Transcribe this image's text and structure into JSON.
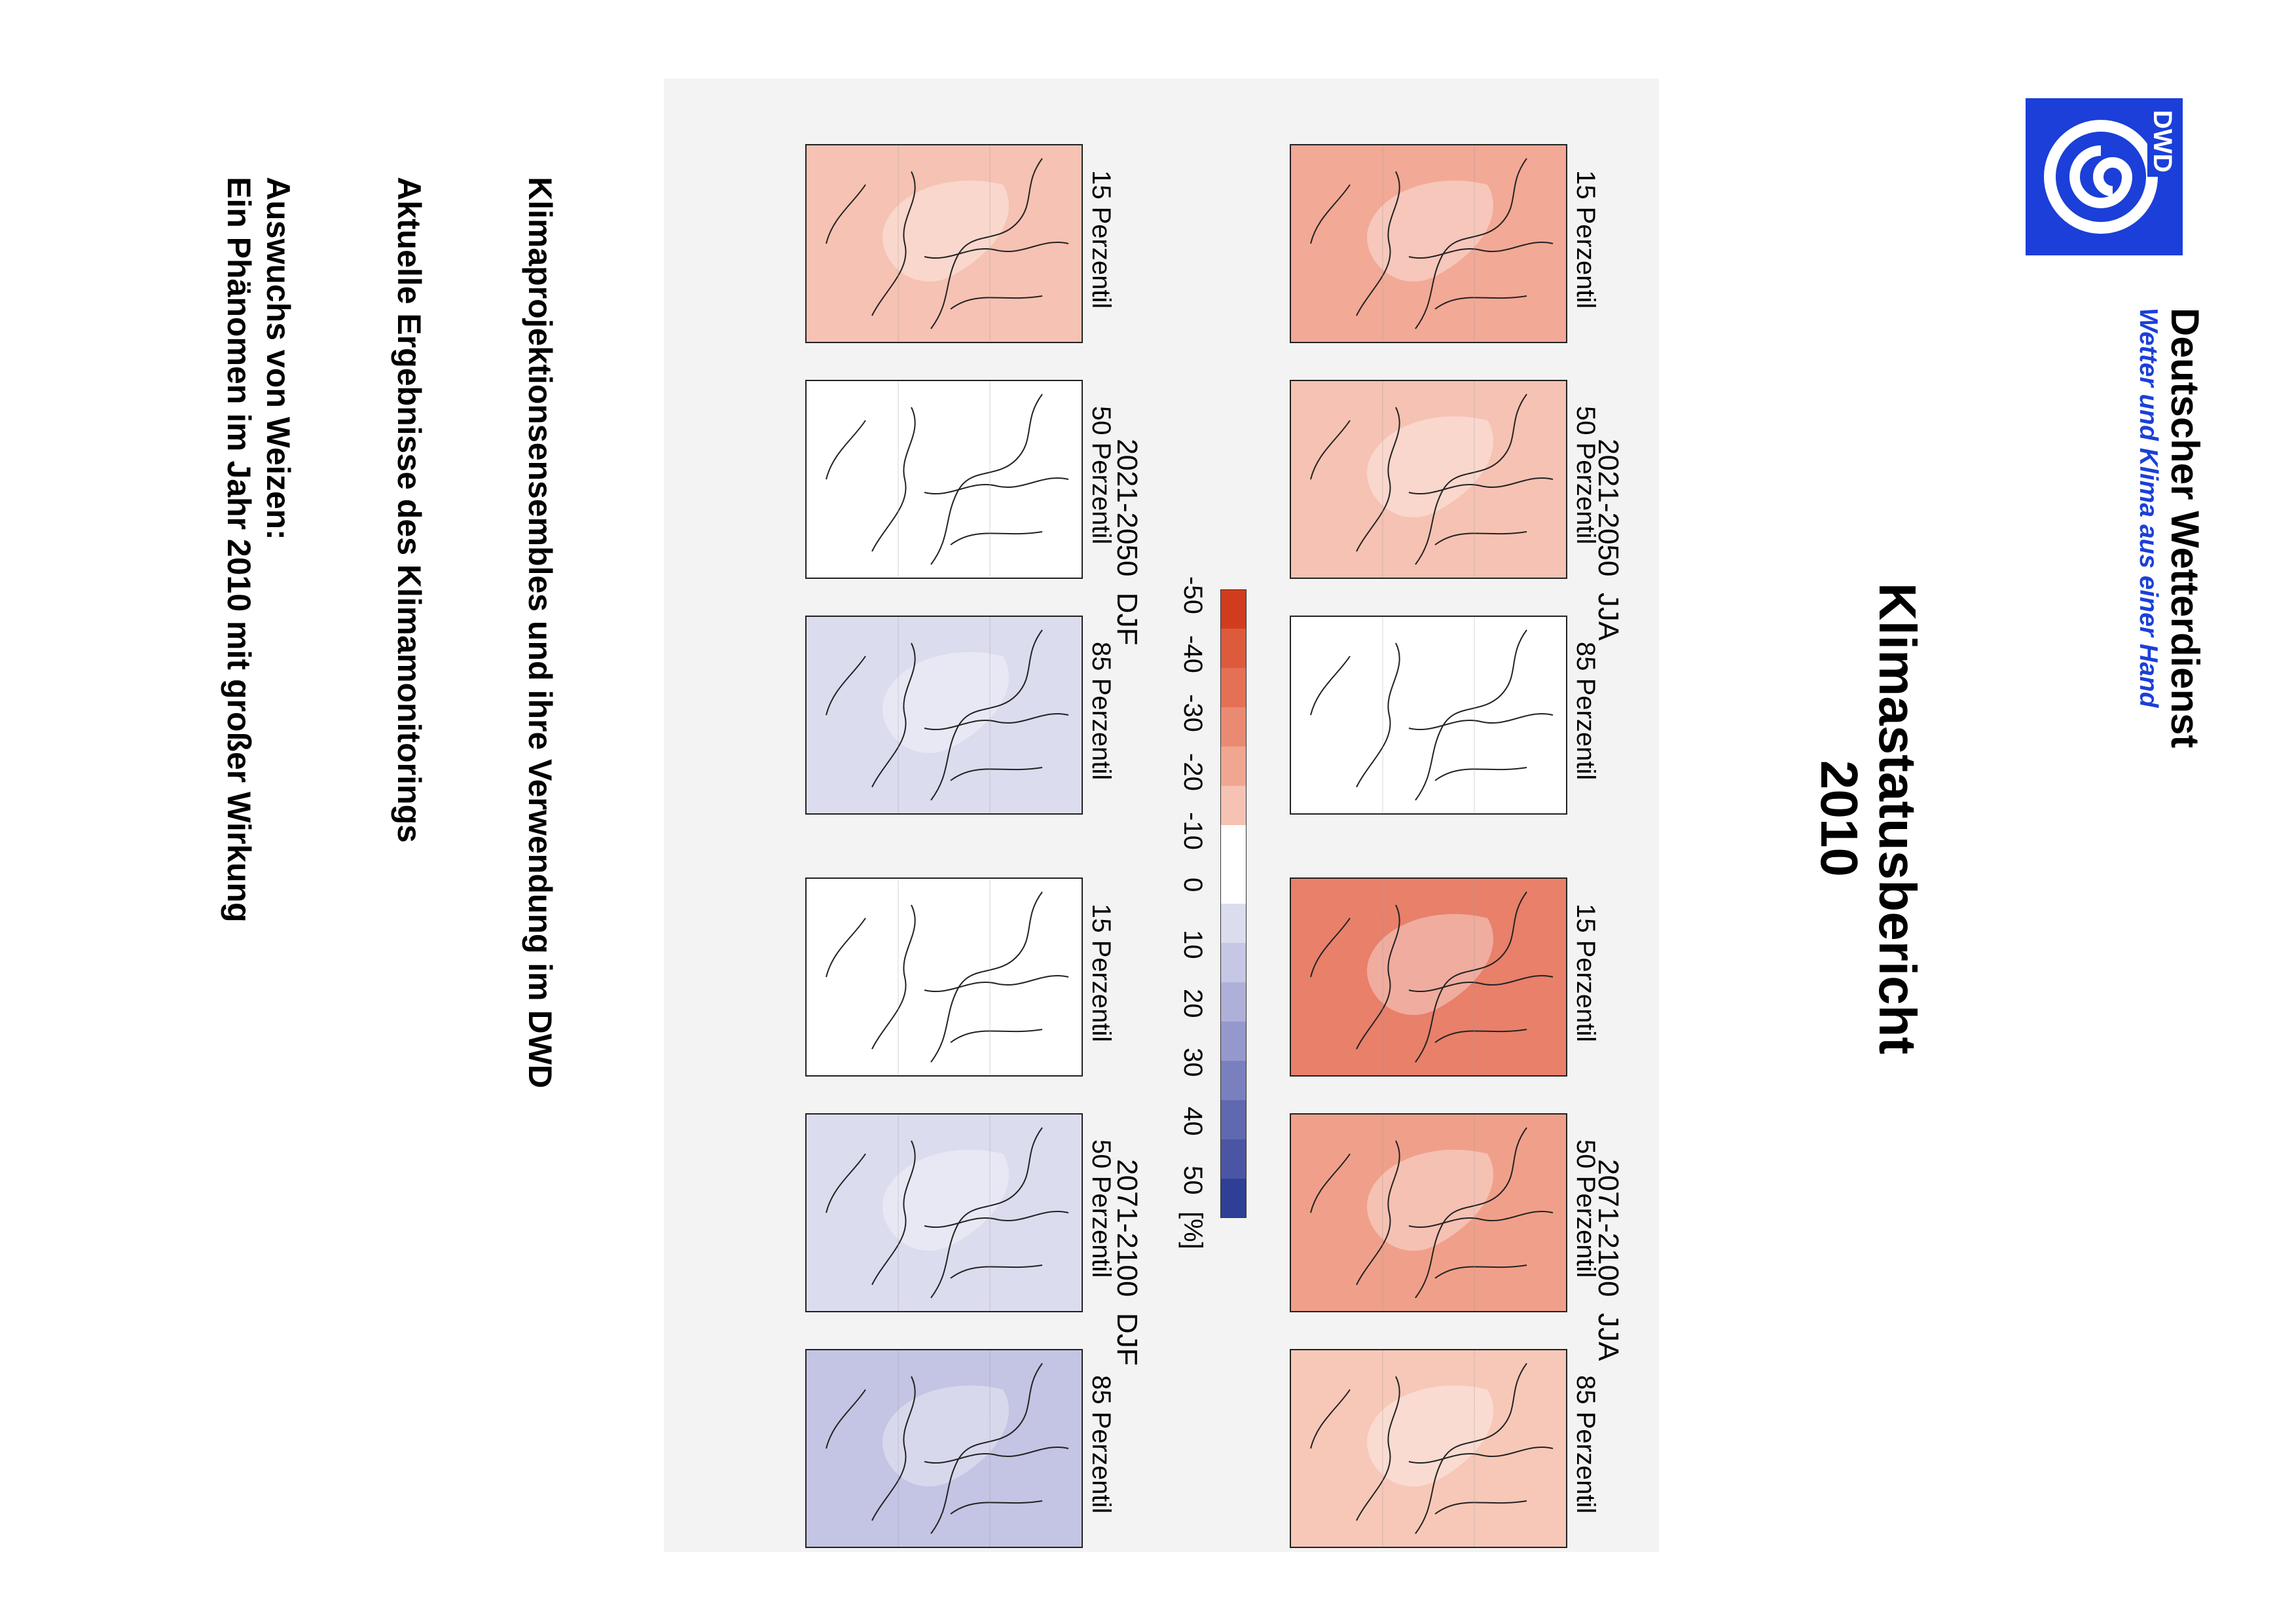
{
  "brand": {
    "name": "Deutscher Wetterdienst",
    "tagline": "Wetter und Klima aus einer Hand",
    "logo_text": "DWD",
    "logo_color": "#1b3fd8"
  },
  "report": {
    "title": "Klimastatusbericht",
    "year": "2010"
  },
  "figure": {
    "top_row": [
      {
        "period": "2021-2050",
        "season": "JJA",
        "percentiles": [
          "15 Perzentil",
          "50 Perzentil",
          "85 Perzentil"
        ],
        "fills": [
          "#f2a996",
          "#f6c2b3",
          "#ffffff"
        ]
      },
      {
        "period": "2071-2100",
        "season": "JJA",
        "percentiles": [
          "15 Perzentil",
          "50 Perzentil",
          "85 Perzentil"
        ],
        "fills": [
          "#e8806a",
          "#f0a08a",
          "#f7c8b8"
        ]
      }
    ],
    "bottom_row": [
      {
        "period": "2021-2050",
        "season": "DJF",
        "percentiles": [
          "15 Perzentil",
          "50 Perzentil",
          "85 Perzentil"
        ],
        "fills": [
          "#f6c2b3",
          "#ffffff",
          "#dcdcef"
        ]
      },
      {
        "period": "2071-2100",
        "season": "DJF",
        "percentiles": [
          "15 Perzentil",
          "50 Perzentil",
          "85 Perzentil"
        ],
        "fills": [
          "#ffffff",
          "#dcdcef",
          "#c4c4e4"
        ]
      }
    ],
    "colorbar": {
      "ticks": [
        "-50",
        "-40",
        "-30",
        "-20",
        "-10",
        "0",
        "10",
        "20",
        "30",
        "40",
        "50",
        "[%]"
      ],
      "colors": [
        "#d23c1e",
        "#dd5a3c",
        "#e57055",
        "#eb8a72",
        "#f0a690",
        "#f6c2b3",
        "#ffffff",
        "#ffffff",
        "#dcdcef",
        "#c6c6e5",
        "#aeb0da",
        "#9598cc",
        "#7a7fbe",
        "#6068af",
        "#4a56a3",
        "#2e3f95"
      ]
    }
  },
  "text": {
    "line1": "Klimaprojektionsensembles und ihre Verwendung im DWD",
    "line2": "Aktuelle Ergebnisse des Klimamonitorings",
    "line3": "Auswuchs von Weizen:",
    "line4": "Ein Phänomen im Jahr 2010 mit großer Wirkung"
  }
}
